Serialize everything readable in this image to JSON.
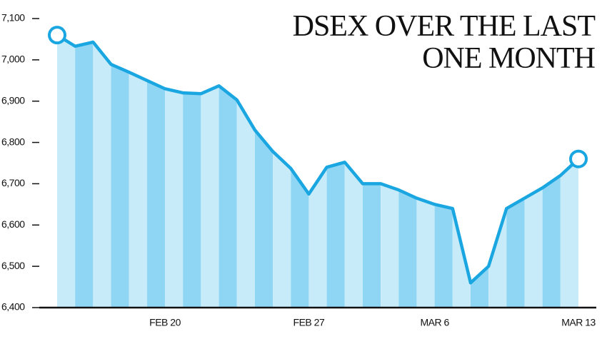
{
  "chart_data": {
    "type": "line",
    "title_lines": [
      "DSEX OVER THE LAST",
      "ONE MONTH"
    ],
    "categories": [
      null,
      null,
      null,
      null,
      null,
      null,
      "FEB 20",
      null,
      null,
      null,
      null,
      null,
      null,
      null,
      "FEB 27",
      null,
      null,
      null,
      null,
      null,
      null,
      "MAR 6",
      null,
      null,
      null,
      null,
      null,
      null,
      null,
      "MAR 13"
    ],
    "series": [
      {
        "name": "DSEX",
        "color": "#1aa6e0",
        "values": [
          7060,
          7033,
          7043,
          6989,
          6970,
          6950,
          6930,
          6920,
          6918,
          6937,
          6903,
          6830,
          6778,
          6737,
          6675,
          6740,
          6752,
          6700,
          6700,
          6685,
          6665,
          6650,
          6640,
          6460,
          6500,
          6640,
          6665,
          6690,
          6720,
          6760
        ]
      }
    ],
    "stripe_colors": [
      "#c8ebfa",
      "#8fd6f5"
    ],
    "ylim": [
      6400,
      7100
    ],
    "yticks": [
      {
        "value": 6400,
        "label": "6,400"
      },
      {
        "value": 6500,
        "label": "6,500"
      },
      {
        "value": 6600,
        "label": "6,600"
      },
      {
        "value": 6700,
        "label": "6,700"
      },
      {
        "value": 6800,
        "label": "6,800"
      },
      {
        "value": 6900,
        "label": "6,900"
      },
      {
        "value": 7000,
        "label": "7,000"
      },
      {
        "value": 7100,
        "label": "7,100"
      }
    ]
  }
}
